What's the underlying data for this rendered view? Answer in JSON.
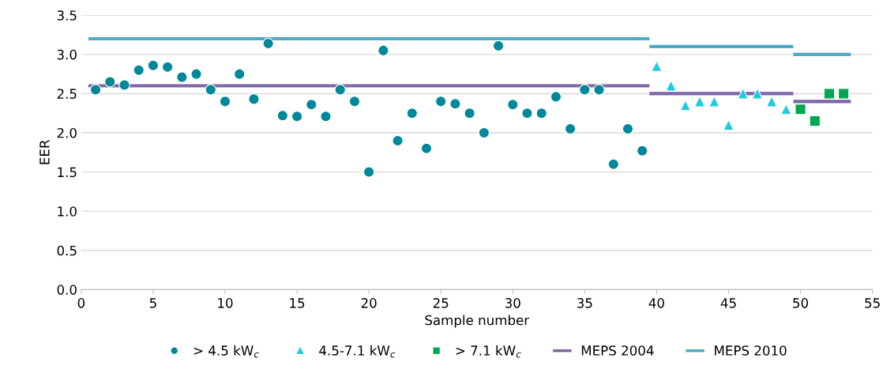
{
  "chart_data": {
    "type": "scatter",
    "xlabel": "Sample number",
    "ylabel": "EER",
    "xlim": [
      0,
      55
    ],
    "xticks": [
      0,
      5,
      10,
      15,
      20,
      25,
      30,
      35,
      40,
      45,
      50,
      55
    ],
    "ylim": [
      0,
      3.5
    ],
    "yticks": [
      {
        "value": 0,
        "label": "0.0"
      },
      {
        "value": 0.5,
        "label": "0.5"
      },
      {
        "value": 1,
        "label": "1.0"
      },
      {
        "value": 1.5,
        "label": "1.5"
      },
      {
        "value": 2,
        "label": "2.0"
      },
      {
        "value": 2.5,
        "label": "2.5"
      },
      {
        "value": 3,
        "label": "3.0"
      },
      {
        "value": 3.5,
        "label": "3.5"
      }
    ],
    "grid": "y",
    "legend": "bottom",
    "series": [
      {
        "name": "> 4.5 kW$_{c}$",
        "marker": "circle",
        "color": "#00889a",
        "x": [
          1,
          2,
          3,
          4,
          5,
          6,
          7,
          8,
          9,
          10,
          11,
          12,
          13,
          14,
          15,
          16,
          17,
          18,
          19,
          20,
          21,
          22,
          23,
          24,
          25,
          26,
          27,
          28,
          29,
          30,
          31,
          32,
          33,
          34,
          35,
          36,
          37,
          38,
          39
        ],
        "values": [
          2.55,
          2.65,
          2.61,
          2.8,
          2.86,
          2.84,
          2.71,
          2.75,
          2.55,
          2.4,
          2.75,
          2.43,
          3.14,
          2.22,
          2.21,
          2.36,
          2.21,
          2.55,
          2.4,
          1.5,
          3.05,
          1.9,
          2.25,
          1.8,
          2.4,
          2.37,
          2.25,
          2.0,
          3.11,
          2.36,
          2.25,
          2.25,
          2.46,
          2.05,
          2.55,
          2.55,
          1.6,
          2.05,
          1.77
        ]
      },
      {
        "name": "4.5-7.1 kW$_{c}$",
        "marker": "triangle",
        "color": "#1fcbe0",
        "x": [
          40,
          41,
          42,
          43,
          44,
          45,
          46,
          47,
          48,
          49
        ],
        "values": [
          2.85,
          2.6,
          2.35,
          2.4,
          2.4,
          2.1,
          2.5,
          2.5,
          2.4,
          2.3
        ]
      },
      {
        "name": "> 7.1 kW$_{c}$",
        "marker": "square",
        "color": "#00a650",
        "x": [
          50,
          51,
          52,
          53
        ],
        "values": [
          2.3,
          2.15,
          2.5,
          2.5
        ]
      },
      {
        "name": "MEPS 2004",
        "type": "line",
        "marker": "none",
        "color": "#7f64a6",
        "x": [
          0.5,
          39.5,
          39.5,
          49.5,
          49.5,
          53.5
        ],
        "values": [
          2.6,
          2.6,
          2.5,
          2.5,
          2.4,
          2.4
        ]
      },
      {
        "name": "MEPS 2010",
        "type": "line",
        "marker": "none",
        "color": "#4bacc6",
        "x": [
          0.5,
          39.5,
          39.5,
          49.5,
          49.5,
          53.5
        ],
        "values": [
          3.2,
          3.2,
          3.1,
          3.1,
          3.0,
          3.0
        ]
      }
    ]
  }
}
